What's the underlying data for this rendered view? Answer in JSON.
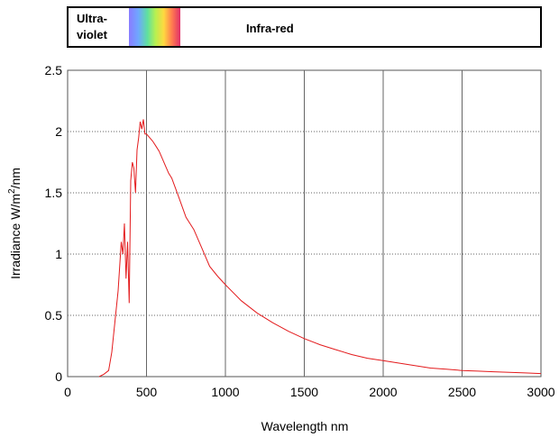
{
  "chart_data": {
    "type": "line",
    "band": {
      "uv_label_line1": "Ultra-",
      "uv_label_line2": "violet",
      "ir_label": "Infra-red"
    },
    "xlabel": "Wavelength nm",
    "ylabel": {
      "prefix": "Irradiance W/m",
      "sup": "2",
      "suffix": "/nm"
    },
    "xlim": [
      0,
      3000
    ],
    "ylim": [
      0,
      2.5
    ],
    "xticks": [
      {
        "value": 0,
        "label": "0"
      },
      {
        "value": 500,
        "label": "500"
      },
      {
        "value": 1000,
        "label": "1000"
      },
      {
        "value": 1500,
        "label": "1500"
      },
      {
        "value": 2000,
        "label": "2000"
      },
      {
        "value": 2500,
        "label": "2500"
      },
      {
        "value": 3000,
        "label": "3000"
      }
    ],
    "yticks": [
      {
        "value": 0,
        "label": "0"
      },
      {
        "value": 0.5,
        "label": "0.5"
      },
      {
        "value": 1,
        "label": "1"
      },
      {
        "value": 1.5,
        "label": "1.5"
      },
      {
        "value": 2,
        "label": "2"
      },
      {
        "value": 2.5,
        "label": "2.5"
      }
    ],
    "grid": true,
    "series": [
      {
        "color": "#e31a1c",
        "x": [
          200,
          230,
          260,
          280,
          300,
          320,
          340,
          350,
          360,
          370,
          380,
          390,
          400,
          410,
          420,
          430,
          440,
          450,
          460,
          470,
          480,
          490,
          500,
          520,
          540,
          560,
          580,
          600,
          620,
          640,
          660,
          680,
          700,
          750,
          800,
          850,
          900,
          950,
          1000,
          1100,
          1200,
          1300,
          1400,
          1500,
          1600,
          1700,
          1800,
          1900,
          2000,
          2100,
          2200,
          2300,
          2400,
          2500,
          2600,
          2700,
          2800,
          2900,
          3000
        ],
        "y": [
          0.0,
          0.02,
          0.05,
          0.2,
          0.45,
          0.7,
          1.1,
          1.0,
          1.25,
          0.8,
          1.1,
          0.6,
          1.6,
          1.75,
          1.7,
          1.5,
          1.85,
          1.95,
          2.08,
          2.02,
          2.1,
          1.98,
          1.98,
          1.95,
          1.92,
          1.88,
          1.84,
          1.78,
          1.72,
          1.66,
          1.62,
          1.55,
          1.48,
          1.3,
          1.2,
          1.05,
          0.9,
          0.82,
          0.75,
          0.62,
          0.52,
          0.44,
          0.37,
          0.31,
          0.26,
          0.22,
          0.18,
          0.15,
          0.13,
          0.11,
          0.09,
          0.07,
          0.06,
          0.05,
          0.045,
          0.04,
          0.035,
          0.03,
          0.025
        ]
      }
    ]
  }
}
